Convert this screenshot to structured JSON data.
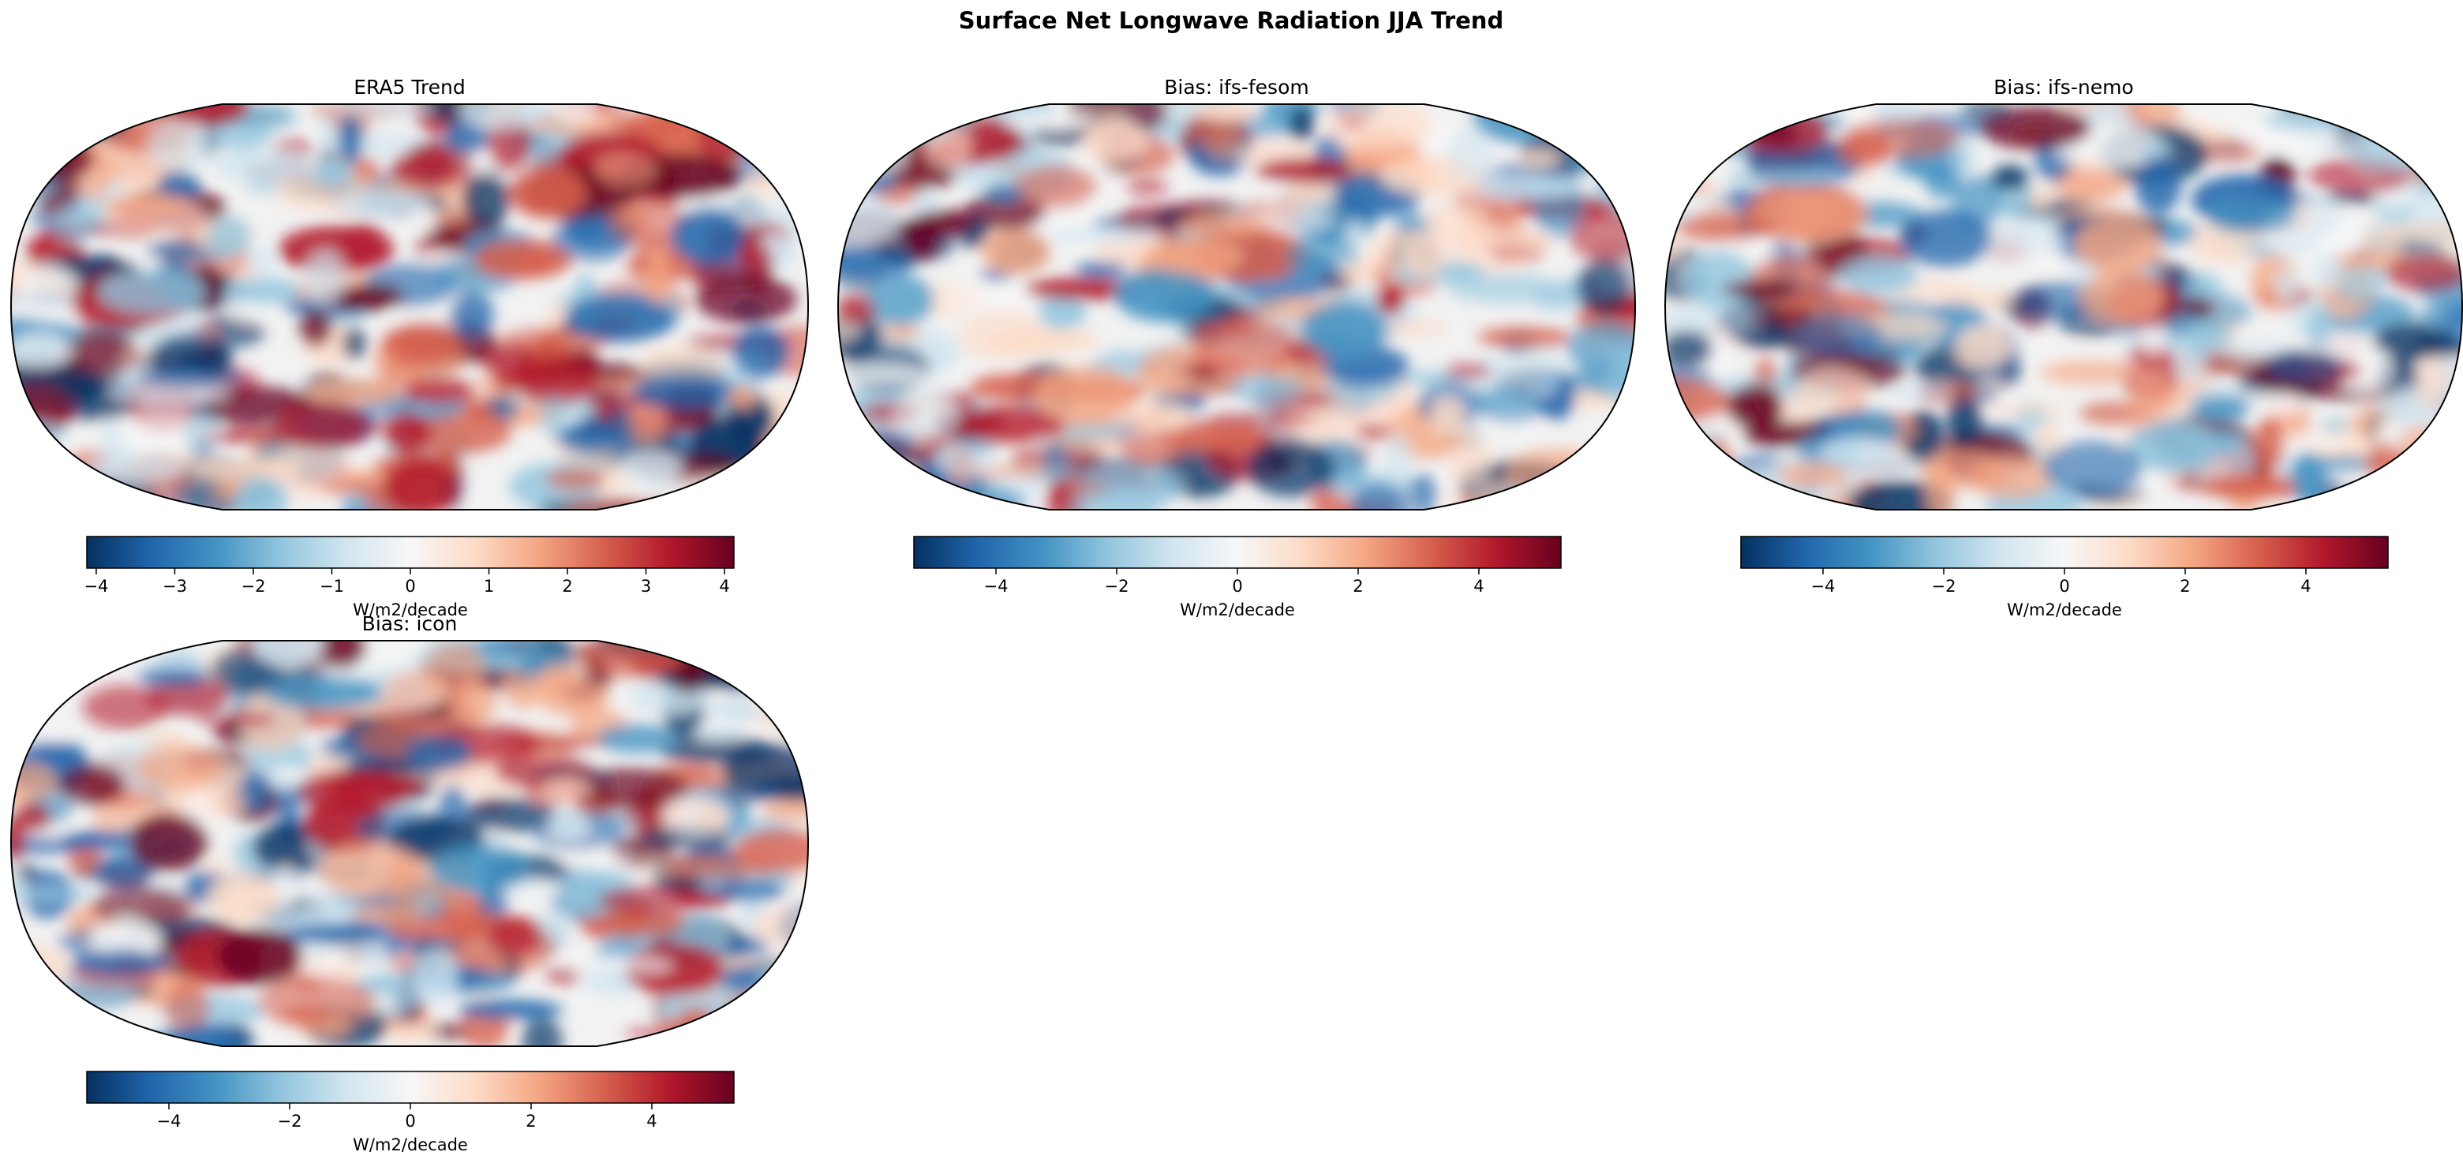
{
  "title": "Surface Net Longwave Radiation JJA Trend",
  "panels": [
    {
      "title": "ERA5 Trend",
      "colorbar": {
        "label": "W/m2/decade",
        "colormap": "RdBu_r",
        "lim": [
          -4.12,
          4.12
        ],
        "ticks": [
          {
            "value": -4,
            "label": "−4"
          },
          {
            "value": -3,
            "label": "−3"
          },
          {
            "value": -2,
            "label": "−2"
          },
          {
            "value": -1,
            "label": "−1"
          },
          0,
          1,
          2,
          3,
          4
        ]
      }
    },
    {
      "title": "Bias: ifs-fesom",
      "colorbar": {
        "label": "W/m2/decade",
        "colormap": "RdBu_r",
        "lim": [
          -5.36,
          5.36
        ],
        "ticks": [
          {
            "value": -4,
            "label": "−4"
          },
          {
            "value": -2,
            "label": "−2"
          },
          0,
          2,
          4
        ]
      }
    },
    {
      "title": "Bias: ifs-nemo",
      "colorbar": {
        "label": "W/m2/decade",
        "colormap": "RdBu_r",
        "lim": [
          -5.36,
          5.36
        ],
        "ticks": [
          {
            "value": -4,
            "label": "−4"
          },
          {
            "value": -2,
            "label": "−2"
          },
          0,
          2,
          4
        ]
      }
    },
    {
      "title": "Bias: icon",
      "colorbar": {
        "label": "W/m2/decade",
        "colormap": "RdBu_r",
        "lim": [
          -5.36,
          5.36
        ],
        "ticks": [
          {
            "value": -4,
            "label": "−4"
          },
          {
            "value": -2,
            "label": "−2"
          },
          0,
          2,
          4
        ]
      }
    }
  ]
}
